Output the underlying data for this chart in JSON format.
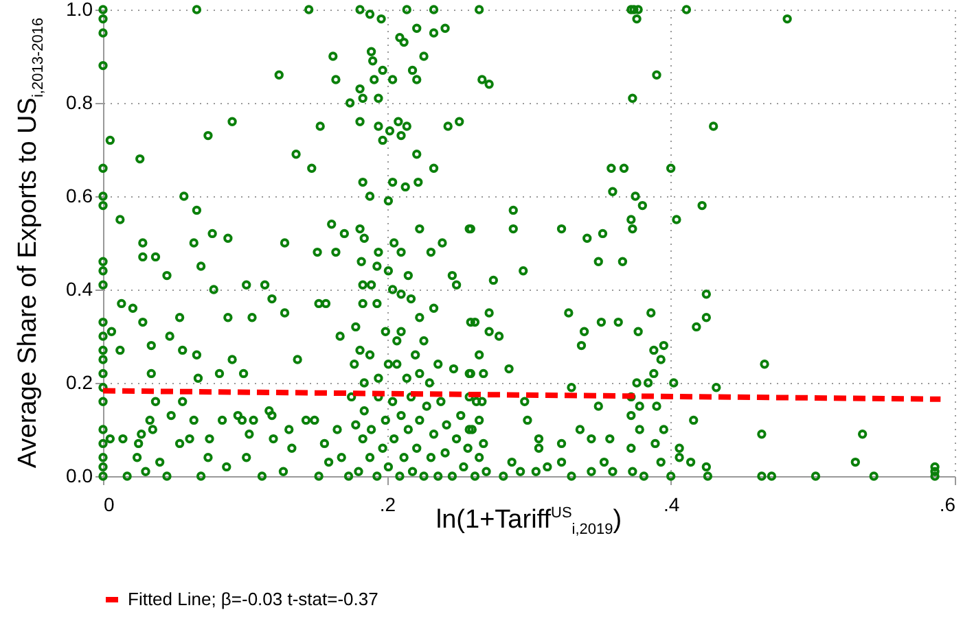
{
  "chart_data": {
    "type": "scatter",
    "xlabel": "ln(1+Tariff$^{US}$$_{i,2019}$)",
    "ylabel": "Average Share of Exports to US$_{i,2013-2016}$",
    "xlim": [
      0,
      0.6
    ],
    "ylim": [
      0,
      1
    ],
    "xticks": [
      0,
      {
        "value": 0.2,
        "label": ".2"
      },
      {
        "value": 0.4,
        "label": ".4"
      },
      {
        "value": 0.6,
        "label": ".6"
      }
    ],
    "yticks": [
      {
        "value": 0,
        "label": "0.0"
      },
      {
        "value": 0.2,
        "label": "0.2"
      },
      {
        "value": 0.4,
        "label": "0.4"
      },
      {
        "value": 0.6,
        "label": "0.6"
      },
      {
        "value": 0.8,
        "label": "0.8"
      },
      {
        "value": 1,
        "label": "1.0"
      }
    ],
    "grid": true,
    "legend": "bottom",
    "x": [
      0,
      0,
      0,
      0,
      0,
      0,
      0,
      0,
      0,
      0,
      0,
      0,
      0,
      0,
      0,
      0,
      0,
      0,
      0,
      0,
      0,
      0,
      0.005,
      0.012,
      0.026,
      0.028,
      0.028,
      0.037,
      0.013,
      0.021,
      0.028,
      0.006,
      0.012,
      0.034,
      0.034,
      0.045,
      0.047,
      0.054,
      0.056,
      0.057,
      0.066,
      0.064,
      0.069,
      0.077,
      0.078,
      0.066,
      0.074,
      0.091,
      0.066,
      0.067,
      0.082,
      0.088,
      0.088,
      0.091,
      0.099,
      0.101,
      0.105,
      0.114,
      0.119,
      0.124,
      0.128,
      0.128,
      0.136,
      0.137,
      0.145,
      0.147,
      0.151,
      0.152,
      0.157,
      0.153,
      0.162,
      0.164,
      0.161,
      0.164,
      0.167,
      0.17,
      0.174,
      0.181,
      0.188,
      0.196,
      0.181,
      0.183,
      0.189,
      0.19,
      0.191,
      0.194,
      0.197,
      0.181,
      0.194,
      0.197,
      0.202,
      0.204,
      0.209,
      0.214,
      0.212,
      0.208,
      0.214,
      0.21,
      0.183,
      0.188,
      0.201,
      0.204,
      0.213,
      0.218,
      0.221,
      0.221,
      0.221,
      0.226,
      0.233,
      0.233,
      0.241,
      0.222,
      0.233,
      0.243,
      0.251,
      0.181,
      0.184,
      0.182,
      0.194,
      0.193,
      0.201,
      0.205,
      0.21,
      0.215,
      0.223,
      0.231,
      0.239,
      0.246,
      0.258,
      0.183,
      0.189,
      0.183,
      0.193,
      0.204,
      0.21,
      0.217,
      0.223,
      0.233,
      0.249,
      0.262,
      0.178,
      0.181,
      0.188,
      0.199,
      0.207,
      0.21,
      0.22,
      0.226,
      0.236,
      0.247,
      0.258,
      0.265,
      0.177,
      0.184,
      0.194,
      0.201,
      0.207,
      0.214,
      0.223,
      0.23,
      0.005,
      0.014,
      0.017,
      0.024,
      0.025,
      0.027,
      0.03,
      0.033,
      0.035,
      0.037,
      0.04,
      0.045,
      0.048,
      0.054,
      0.056,
      0.061,
      0.064,
      0.069,
      0.074,
      0.075,
      0.084,
      0.087,
      0.095,
      0.098,
      0.101,
      0.103,
      0.106,
      0.112,
      0.117,
      0.119,
      0.12,
      0.127,
      0.131,
      0.133,
      0.143,
      0.149,
      0.152,
      0.156,
      0.159,
      0.165,
      0.168,
      0.173,
      0.175,
      0.178,
      0.18,
      0.183,
      0.184,
      0.188,
      0.189,
      0.193,
      0.194,
      0.197,
      0.199,
      0.201,
      0.204,
      0.205,
      0.209,
      0.21,
      0.212,
      0.215,
      0.217,
      0.218,
      0.221,
      0.223,
      0.226,
      0.228,
      0.231,
      0.233,
      0.236,
      0.238,
      0.241,
      0.242,
      0.246,
      0.249,
      0.252,
      0.254,
      0.257,
      0.26,
      0.262,
      0.263,
      0.265,
      0.267,
      0.272,
      0.259,
      0.289,
      0.289,
      0.296,
      0.275,
      0.272,
      0.259,
      0.272,
      0.279,
      0.259,
      0.268,
      0.286,
      0.323,
      0.328,
      0.339,
      0.337,
      0.341,
      0.349,
      0.351,
      0.352,
      0.358,
      0.367,
      0.359,
      0.363,
      0.366,
      0.372,
      0.374,
      0.377,
      0.376,
      0.373,
      0.375,
      0.38,
      0.372,
      0.373,
      0.386,
      0.377,
      0.388,
      0.395,
      0.393,
      0.388,
      0.376,
      0.384,
      0.39,
      0.4,
      0.411,
      0.404,
      0.422,
      0.43,
      0.425,
      0.425,
      0.418,
      0.402,
      0.432,
      0.466,
      0.482,
      0.297,
      0.299,
      0.33,
      0.307,
      0.307,
      0.323,
      0.336,
      0.344,
      0.349,
      0.357,
      0.372,
      0.372,
      0.378,
      0.378,
      0.372,
      0.373,
      0.39,
      0.395,
      0.389,
      0.393,
      0.406,
      0.406,
      0.416,
      0.414,
      0.425,
      0.426,
      0.4,
      0.464,
      0.464,
      0.471,
      0.502,
      0.53,
      0.535,
      0.543,
      0.586,
      0.586,
      0.586,
      0.288,
      0.294,
      0.305,
      0.313,
      0.323,
      0.33,
      0.344,
      0.353,
      0.359,
      0.381,
      0.27,
      0.265,
      0.268,
      0.265,
      0.267,
      0.258,
      0.258,
      0.282
    ],
    "series": [
      {
        "marker": "circle",
        "color": "#0b800b",
        "values": [
          1,
          0.98,
          0.95,
          0.88,
          0.66,
          0.6,
          0.58,
          0.46,
          0.44,
          0.41,
          0.33,
          0.3,
          0.27,
          0.25,
          0.22,
          0.19,
          0.16,
          0.1,
          0.07,
          0.04,
          0.02,
          0,
          0.72,
          0.55,
          0.68,
          0.5,
          0.47,
          0.47,
          0.37,
          0.36,
          0.33,
          0.31,
          0.27,
          0.28,
          0.22,
          0.43,
          0.3,
          0.34,
          0.27,
          0.6,
          0.57,
          0.5,
          0.45,
          0.52,
          0.4,
          1,
          0.73,
          0.76,
          0.26,
          0.21,
          0.22,
          0.51,
          0.34,
          0.25,
          0.22,
          0.41,
          0.34,
          0.41,
          0.38,
          0.86,
          0.5,
          0.35,
          0.69,
          0.25,
          1,
          0.66,
          0.48,
          0.37,
          0.37,
          0.75,
          0.9,
          0.85,
          0.54,
          0.48,
          0.3,
          0.52,
          0.8,
          1,
          0.99,
          0.98,
          0.83,
          0.81,
          0.91,
          0.89,
          0.85,
          0.81,
          0.87,
          0.76,
          0.75,
          0.72,
          0.74,
          0.85,
          0.94,
          1,
          0.93,
          0.76,
          0.75,
          0.73,
          0.63,
          0.6,
          0.59,
          0.63,
          0.62,
          0.87,
          0.96,
          0.85,
          0.69,
          0.9,
          1,
          0.95,
          0.96,
          0.63,
          0.66,
          0.75,
          0.76,
          0.53,
          0.51,
          0.46,
          0.48,
          0.45,
          0.44,
          0.5,
          0.48,
          0.43,
          0.53,
          0.48,
          0.5,
          0.43,
          0.53,
          0.41,
          0.41,
          0.37,
          0.37,
          0.4,
          0.39,
          0.38,
          0.34,
          0.36,
          0.41,
          0.33,
          0.32,
          0.27,
          0.26,
          0.31,
          0.29,
          0.31,
          0.26,
          0.29,
          0.24,
          0.23,
          0.22,
          0.26,
          0.24,
          0.2,
          0.21,
          0.24,
          0.24,
          0.21,
          0.22,
          0.2,
          0.08,
          0.08,
          0,
          0.04,
          0.07,
          0.09,
          0.01,
          0.12,
          0.1,
          0.16,
          0.03,
          0,
          0.13,
          0.07,
          0.16,
          0.08,
          0.12,
          0,
          0.04,
          0.08,
          0.12,
          0.02,
          0.13,
          0.12,
          0.04,
          0.09,
          0.12,
          0,
          0.14,
          0.13,
          0.08,
          0.01,
          0.1,
          0.06,
          0.12,
          0.12,
          0,
          0.07,
          0.03,
          0.1,
          0.04,
          0,
          0.17,
          0.11,
          0.01,
          0.08,
          0.14,
          0.04,
          0.1,
          0,
          0.17,
          0.06,
          0.12,
          0.02,
          0.16,
          0.08,
          0,
          0.13,
          0.04,
          0.1,
          0.17,
          0.01,
          0.06,
          0.12,
          0,
          0.15,
          0.04,
          0.09,
          0,
          0.16,
          0.05,
          0.11,
          0,
          0.08,
          0.13,
          0.02,
          0.06,
          0.1,
          0,
          0.16,
          1,
          0.85,
          0.84,
          0.53,
          0.57,
          0.53,
          0.44,
          0.42,
          0.35,
          0.33,
          0.31,
          0.3,
          0.22,
          0.22,
          0.23,
          0.53,
          0.35,
          0.31,
          0.28,
          0.51,
          0.46,
          0.33,
          0.52,
          0.66,
          0.66,
          0.61,
          0.33,
          0.46,
          1,
          1,
          1,
          0.98,
          0.81,
          0.6,
          0.58,
          0.55,
          0.53,
          0.35,
          0.31,
          0.27,
          0.28,
          0.25,
          0.22,
          0.2,
          0.2,
          0.86,
          0.66,
          1,
          0.55,
          0.58,
          0.75,
          0.39,
          0.34,
          0.32,
          0.2,
          0.19,
          0.24,
          0.98,
          0.16,
          0.12,
          0.19,
          0.08,
          0.06,
          0.07,
          0.1,
          0.08,
          0.15,
          0.08,
          0.17,
          0.13,
          0.15,
          0.1,
          0.06,
          0.01,
          0.15,
          0.1,
          0.07,
          0.03,
          0.06,
          0.04,
          0.12,
          0.03,
          0.02,
          0,
          0,
          0.09,
          0,
          0,
          0,
          0.03,
          0.09,
          0,
          0.02,
          0.01,
          0,
          0.03,
          0.01,
          0.01,
          0.02,
          0.03,
          0,
          0.01,
          0.03,
          0.01,
          0,
          0.01,
          0.04,
          0.07,
          0.12,
          0.16,
          0.17,
          0.1,
          0
        ]
      },
      {
        "type": "line",
        "name": "Fitted Line; β=-0.03 t-stat=-0.37",
        "color": "#ff0000",
        "line_style": "dashed",
        "x": [
          0,
          0.59
        ],
        "values": [
          0.183,
          0.165
        ]
      }
    ]
  }
}
